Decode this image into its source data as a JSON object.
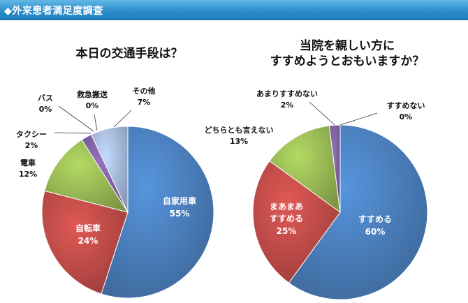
{
  "header": {
    "title": "◆外来患者満足度調査"
  },
  "chart_data": [
    {
      "type": "pie",
      "title": "本日の交通手段は？",
      "slices": [
        {
          "name": "自家用車",
          "pct_label": "55%",
          "value": 55,
          "color": "#4a7ebb"
        },
        {
          "name": "自転車",
          "pct_label": "24%",
          "value": 24,
          "color": "#be4b48"
        },
        {
          "name": "電車",
          "pct_label": "12%",
          "value": 12,
          "color": "#98b954"
        },
        {
          "name": "タクシー",
          "pct_label": "2%",
          "value": 2,
          "color": "#7d60a0"
        },
        {
          "name": "バス",
          "pct_label": "0%",
          "value": 0,
          "color": "#46aac5"
        },
        {
          "name": "救急搬送",
          "pct_label": "0%",
          "value": 0,
          "color": "#f59d56"
        },
        {
          "name": "その他",
          "pct_label": "7%",
          "value": 7,
          "color": "#a5b9dc"
        }
      ]
    },
    {
      "type": "pie",
      "title": "当院を親しい方に\nすすめようとおもいますか？",
      "slices": [
        {
          "name": "すすめる",
          "pct_label": "60%",
          "value": 60,
          "color": "#4a7ebb"
        },
        {
          "name": "まあまあ\nすすめる",
          "pct_label": "25%",
          "value": 25,
          "color": "#be4b48"
        },
        {
          "name": "どちらとも言えない",
          "pct_label": "13%",
          "value": 13,
          "color": "#98b954"
        },
        {
          "name": "あまりすすめない",
          "pct_label": "2%",
          "value": 2,
          "color": "#7d60a0"
        },
        {
          "name": "すすめない",
          "pct_label": "0%",
          "value": 0,
          "color": "#46aac5"
        }
      ]
    }
  ]
}
